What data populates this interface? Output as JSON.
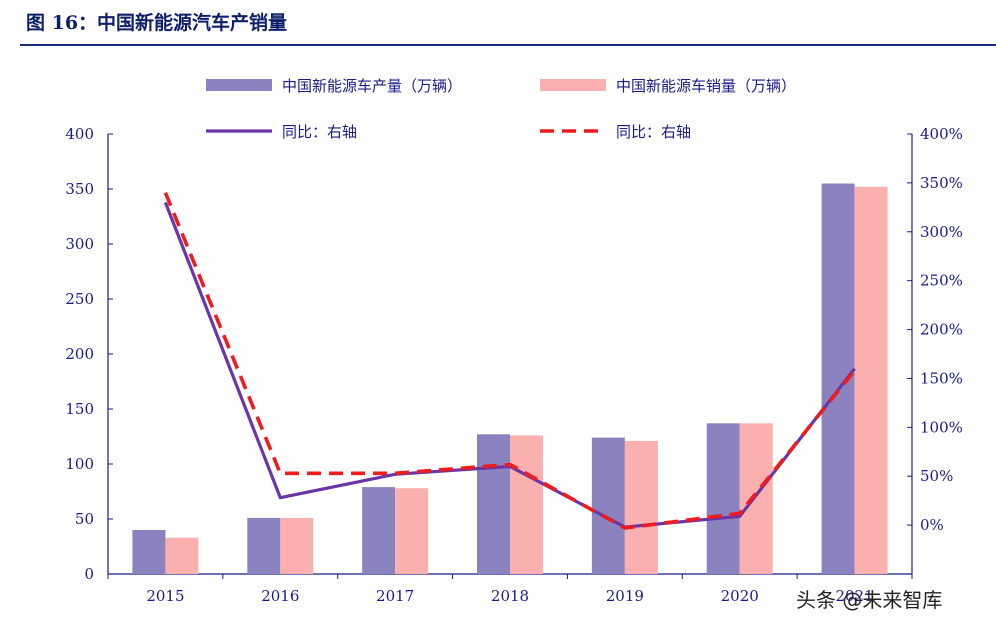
{
  "header": {
    "title": "图 16：中国新能源汽车产销量"
  },
  "watermark": {
    "text": "头条 @未来智库"
  },
  "colors": {
    "production": "#8b83c0",
    "sales": "#fbb0b0",
    "yoy_production": "#6a35a8",
    "yoy_sales": "#ee1c1c",
    "axis": "#1a1a8a"
  },
  "chart_data": {
    "type": "bar",
    "title": "中国新能源汽车产销量",
    "categories": [
      "2015",
      "2016",
      "2017",
      "2018",
      "2019",
      "2020",
      "2021"
    ],
    "series": [
      {
        "name": "中国新能源车产量（万辆）",
        "type": "bar",
        "axis": "left",
        "values": [
          40,
          51,
          79,
          127,
          124,
          137,
          355
        ]
      },
      {
        "name": "中国新能源车销量（万辆）",
        "type": "bar",
        "axis": "left",
        "values": [
          33,
          51,
          78,
          126,
          121,
          137,
          352
        ]
      },
      {
        "name": "同比：右轴",
        "type": "line",
        "style": "solid",
        "axis": "right",
        "values": [
          3.3,
          0.28,
          0.52,
          0.6,
          -0.02,
          0.09,
          1.6
        ]
      },
      {
        "name": "同比：右轴",
        "type": "line",
        "style": "dashed",
        "axis": "right",
        "values": [
          3.4,
          0.53,
          0.53,
          0.62,
          -0.03,
          0.12,
          1.58
        ]
      }
    ],
    "ylim": [
      0,
      400
    ],
    "yticks": [
      "0",
      "50",
      "100",
      "150",
      "200",
      "250",
      "300",
      "350",
      "400"
    ],
    "y2lim": [
      -0.5,
      4.0
    ],
    "y2ticks": [
      "0%",
      "50%",
      "100%",
      "150%",
      "200%",
      "250%",
      "300%",
      "350%",
      "400%"
    ],
    "y2tick_values": [
      0,
      0.5,
      1.0,
      1.5,
      2.0,
      2.5,
      3.0,
      3.5,
      4.0
    ],
    "legend": [
      {
        "label": "中国新能源车产量（万辆）",
        "kind": "bar",
        "series": 0
      },
      {
        "label": "中国新能源车销量（万辆）",
        "kind": "bar",
        "series": 1
      },
      {
        "label": "同比：右轴",
        "kind": "line",
        "series": 2
      },
      {
        "label": "同比：右轴",
        "kind": "dashed",
        "series": 3
      }
    ],
    "legend_position": "top"
  }
}
